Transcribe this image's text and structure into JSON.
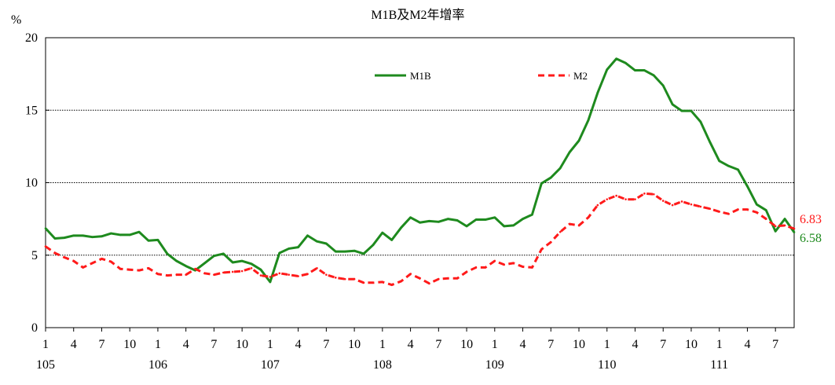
{
  "chart_data": {
    "type": "line",
    "title": "M1B及M2年增率",
    "ylabel": "%",
    "ylim": [
      0,
      20
    ],
    "yticks": [
      0,
      5,
      10,
      15,
      20
    ],
    "grid": "horizontal dotted at 5, 10, 15",
    "legend_position": "top-center",
    "x_month_ticks": [
      "1",
      "4",
      "7",
      "10",
      "1",
      "4",
      "7",
      "10",
      "1",
      "4",
      "7",
      "10",
      "1",
      "4",
      "7",
      "10",
      "1",
      "4",
      "7",
      "10",
      "1",
      "4",
      "7",
      "10",
      "1",
      "4",
      "7"
    ],
    "x_year_labels": [
      "105",
      "106",
      "107",
      "108",
      "109",
      "110",
      "111"
    ],
    "series": [
      {
        "name": "M1B",
        "color": "#1e8a1e",
        "line_style": "solid",
        "values": [
          6.85,
          6.15,
          6.2,
          6.35,
          6.35,
          6.25,
          6.3,
          6.5,
          6.4,
          6.4,
          6.6,
          6.0,
          6.05,
          5.1,
          4.6,
          4.25,
          3.95,
          4.45,
          4.95,
          5.1,
          4.5,
          4.6,
          4.4,
          4.0,
          3.15,
          5.15,
          5.45,
          5.55,
          6.35,
          5.95,
          5.8,
          5.25,
          5.25,
          5.3,
          5.1,
          5.7,
          6.55,
          6.05,
          6.9,
          7.6,
          7.25,
          7.35,
          7.3,
          7.5,
          7.4,
          7.0,
          7.45,
          7.45,
          7.6,
          7.0,
          7.05,
          7.5,
          7.8,
          9.95,
          10.35,
          11.0,
          12.1,
          12.9,
          14.3,
          16.2,
          17.8,
          18.55,
          18.25,
          17.75,
          17.75,
          17.4,
          16.7,
          15.4,
          14.95,
          14.95,
          14.2,
          12.8,
          11.5,
          11.15,
          10.9,
          9.75,
          8.5,
          8.1,
          6.65,
          7.5,
          6.58
        ]
      },
      {
        "name": "M2",
        "color": "#ff1a1a",
        "line_style": "dashed",
        "values": [
          5.6,
          5.15,
          4.85,
          4.6,
          4.15,
          4.45,
          4.75,
          4.55,
          4.05,
          4.0,
          3.95,
          4.1,
          3.7,
          3.6,
          3.65,
          3.65,
          4.05,
          3.75,
          3.65,
          3.8,
          3.85,
          3.9,
          4.1,
          3.6,
          3.5,
          3.75,
          3.65,
          3.55,
          3.7,
          4.1,
          3.65,
          3.45,
          3.35,
          3.35,
          3.1,
          3.1,
          3.15,
          2.95,
          3.2,
          3.7,
          3.4,
          3.05,
          3.35,
          3.4,
          3.4,
          3.85,
          4.15,
          4.15,
          4.6,
          4.35,
          4.45,
          4.2,
          4.15,
          5.4,
          5.9,
          6.6,
          7.15,
          7.05,
          7.6,
          8.45,
          8.85,
          9.1,
          8.85,
          8.85,
          9.25,
          9.2,
          8.75,
          8.45,
          8.7,
          8.5,
          8.35,
          8.2,
          8.0,
          7.85,
          8.15,
          8.15,
          7.95,
          7.5,
          7.0,
          7.05,
          6.83
        ]
      }
    ],
    "end_labels": [
      {
        "series": "M2",
        "text": "6.83",
        "color": "#ff1a1a"
      },
      {
        "series": "M1B",
        "text": "6.58",
        "color": "#1e8a1e"
      }
    ]
  }
}
